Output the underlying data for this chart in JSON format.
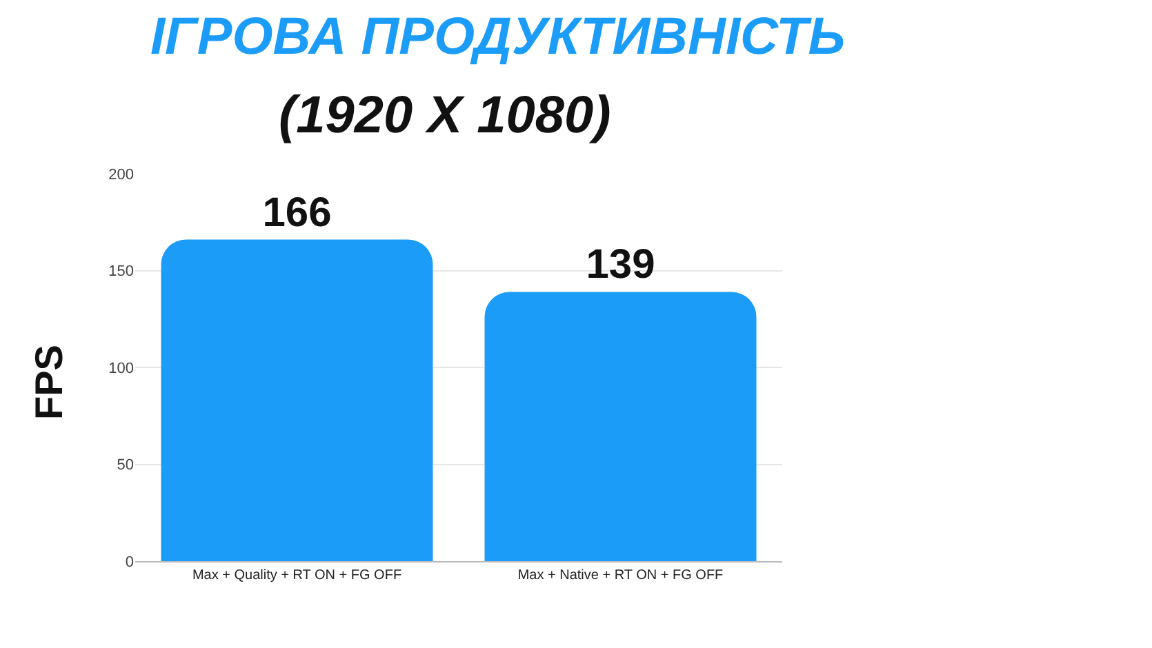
{
  "chart_data": {
    "type": "bar",
    "title": "ІГРОВА ПРОДУКТИВНІСТЬ",
    "subtitle": "(1920 X 1080)",
    "ylabel": "FPS",
    "categories": [
      "Max + Quality + RT ON + FG OFF",
      "Max + Native + RT ON + FG OFF"
    ],
    "values": [
      166,
      139
    ],
    "color": "#1b9cf8",
    "ylim": [
      0,
      200
    ],
    "yticks": [
      0,
      50,
      100,
      150,
      200
    ],
    "grid": "y",
    "data_labels": true,
    "legend": false
  }
}
